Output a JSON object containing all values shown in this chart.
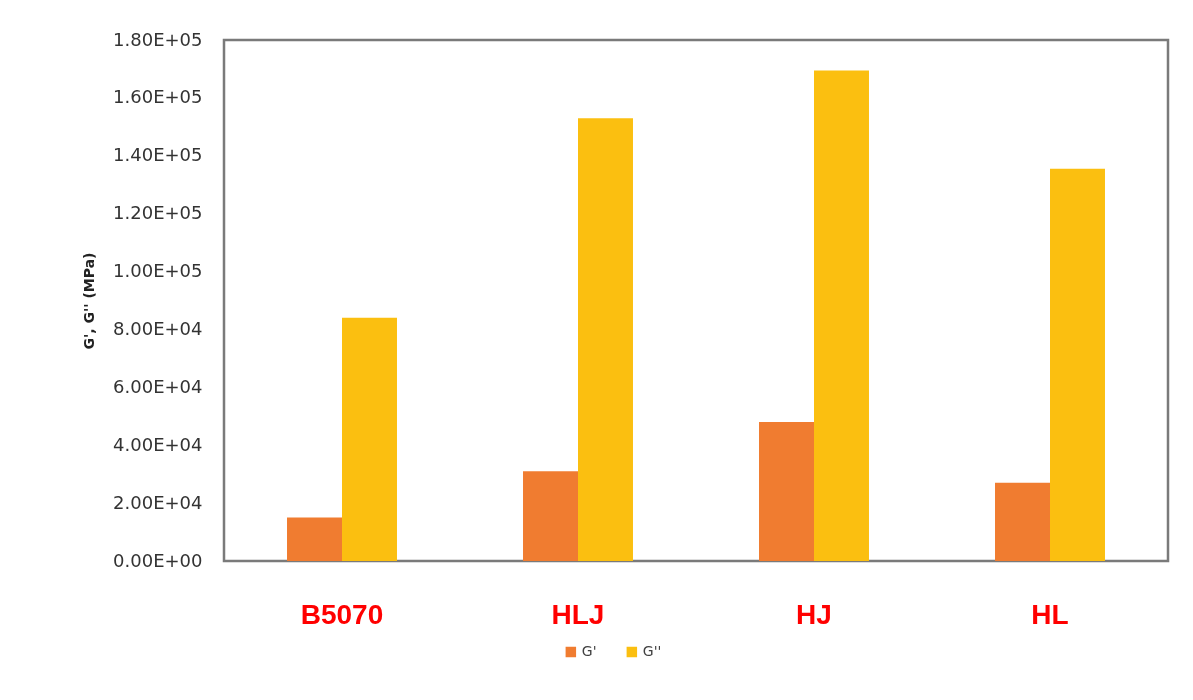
{
  "chart_data": {
    "type": "bar",
    "ylabel": "G', G'' (MPa)",
    "categories": [
      "B5070",
      "HLJ",
      "HJ",
      "HL"
    ],
    "series": [
      {
        "name": "G'",
        "color": "#f07c30",
        "values": [
          15000,
          31000,
          48000,
          27000
        ]
      },
      {
        "name": "G''",
        "color": "#fbbf10",
        "values": [
          84000,
          153000,
          169500,
          135500
        ]
      }
    ],
    "ylim": [
      0,
      180000
    ],
    "yticks": [
      {
        "value": 0,
        "label": "0.00E+00"
      },
      {
        "value": 20000,
        "label": "2.00E+04"
      },
      {
        "value": 40000,
        "label": "4.00E+04"
      },
      {
        "value": 60000,
        "label": "6.00E+04"
      },
      {
        "value": 80000,
        "label": "8.00E+04"
      },
      {
        "value": 100000,
        "label": "1.00E+05"
      },
      {
        "value": 120000,
        "label": "1.20E+05"
      },
      {
        "value": 140000,
        "label": "1.40E+05"
      },
      {
        "value": 160000,
        "label": "1.60E+05"
      },
      {
        "value": 180000,
        "label": "1.80E+05"
      }
    ],
    "grid": false,
    "legend": "bottom"
  }
}
